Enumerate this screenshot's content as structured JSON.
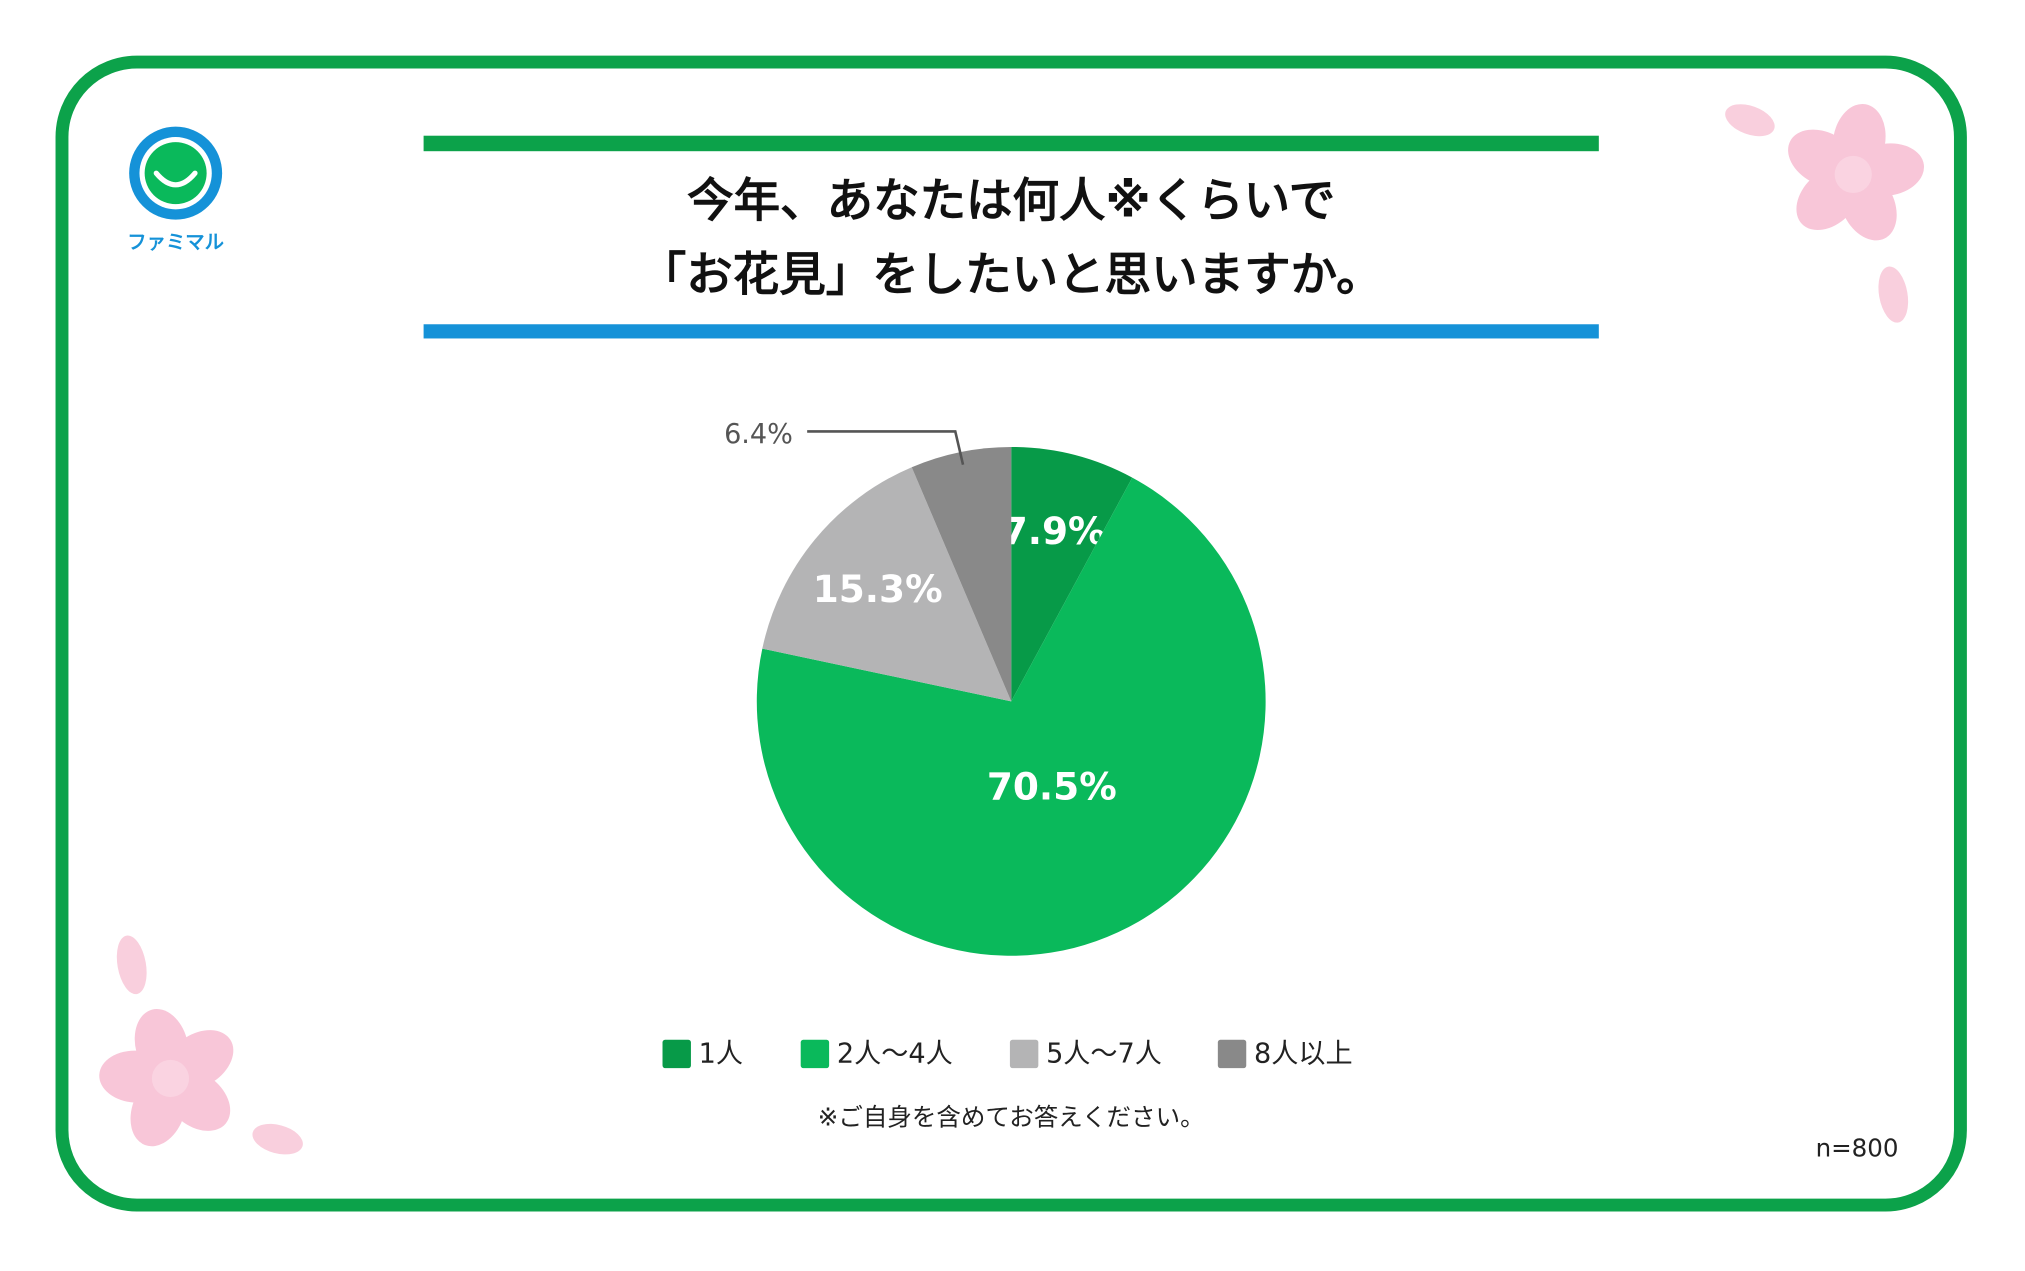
{
  "logo": "ファミマル",
  "note": "※ご自身を含めてお答えください。",
  "sample": "n=800",
  "chart_data": {
    "type": "pie",
    "title": [
      "今年、あなたは何人※くらいで",
      "「お花見」をしたいと思いますか。"
    ],
    "categories": [
      "1人",
      "2人〜4人",
      "5人〜7人",
      "8人以上"
    ],
    "values": [
      7.9,
      70.5,
      15.3,
      6.4
    ],
    "value_labels": [
      "7.9%",
      "70.5%",
      "15.3%",
      "6.4%"
    ],
    "colors": [
      "#079a48",
      "#0ab95b",
      "#b4b4b5",
      "#898989"
    ],
    "legend": "bottom"
  }
}
